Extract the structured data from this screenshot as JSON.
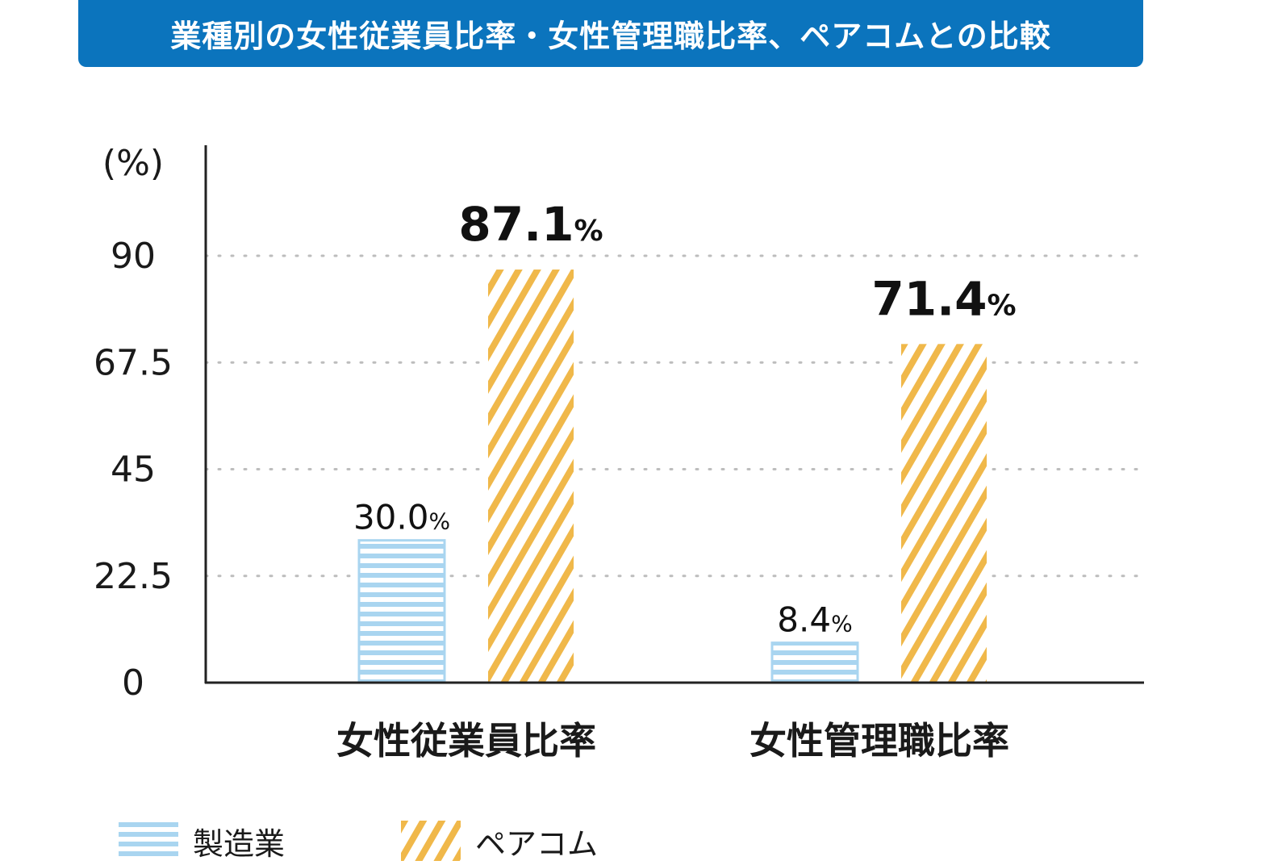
{
  "title": "業種別の女性従業員比率・女性管理職比率、ペアコムとの比較",
  "colors": {
    "banner": "#0b74bd",
    "series_manufacturing": "#a9d5f0",
    "series_pacom": "#f0b84a",
    "axis": "#222222",
    "grid": "#bdbdbd"
  },
  "chart_data": {
    "type": "bar",
    "unit_label": "(%)",
    "categories": [
      "女性従業員比率",
      "女性管理職比率"
    ],
    "series": [
      {
        "name": "製造業",
        "values": [
          30.0,
          8.4
        ],
        "labels": [
          "30.0",
          "8.4"
        ],
        "pattern": "horizontal-stripes"
      },
      {
        "name": "ペアコム",
        "values": [
          87.1,
          71.4
        ],
        "labels": [
          "87.1",
          "71.4"
        ],
        "pattern": "diagonal-stripes"
      }
    ],
    "value_suffix": "%",
    "yticks": [
      "0",
      "22.5",
      "45",
      "67.5",
      "90"
    ],
    "ylim": [
      0,
      112.5
    ],
    "grid": "dotted",
    "legend_position": "bottom-left"
  }
}
